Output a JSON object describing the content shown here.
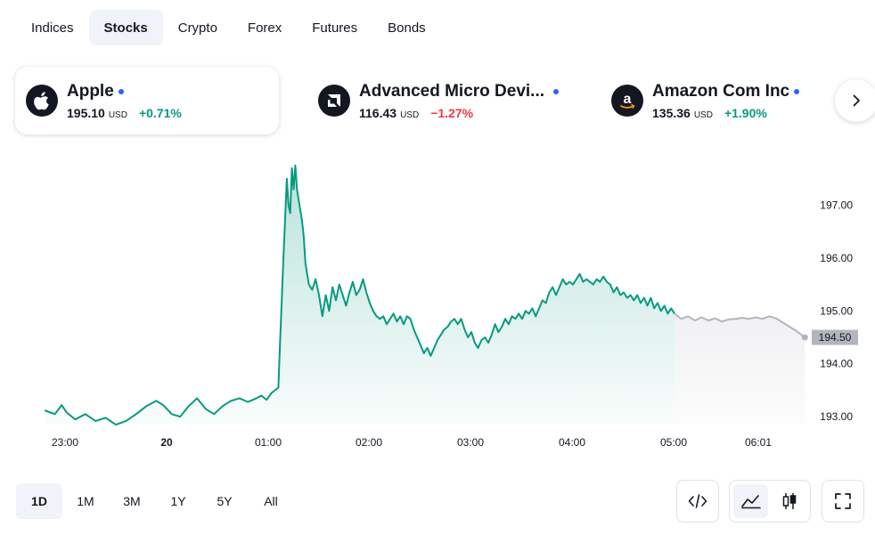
{
  "tabs": [
    {
      "label": "Indices",
      "active": false
    },
    {
      "label": "Stocks",
      "active": true
    },
    {
      "label": "Crypto",
      "active": false
    },
    {
      "label": "Forex",
      "active": false
    },
    {
      "label": "Futures",
      "active": false
    },
    {
      "label": "Bonds",
      "active": false
    }
  ],
  "symbols": [
    {
      "name": "Apple",
      "price": "195.10",
      "currency": "USD",
      "change": "+0.71%",
      "direction": "up",
      "logo_icon": "apple-logo-icon",
      "active": true
    },
    {
      "name": "Advanced Micro Devi...",
      "price": "116.43",
      "currency": "USD",
      "change": "−1.27%",
      "direction": "down",
      "logo_icon": "amd-logo-icon",
      "active": false
    },
    {
      "name": "Amazon Com Inc",
      "price": "135.36",
      "currency": "USD",
      "change": "+1.90%",
      "direction": "up",
      "logo_icon": "amazon-logo-icon",
      "active": false
    }
  ],
  "colors": {
    "up": "#089981",
    "down": "#f23645",
    "line": "#089981",
    "extended_line": "#b2b5be",
    "live_dot": "#2962ff",
    "active_bg": "#f0f3fa"
  },
  "chart_data": {
    "type": "area",
    "x_ticks": [
      "23:00",
      "20",
      "01:00",
      "02:00",
      "03:00",
      "04:00",
      "05:00",
      "06:01"
    ],
    "y_ticks": [
      "197.00",
      "196.00",
      "195.00",
      "194.00",
      "193.00"
    ],
    "ylim": [
      192.75,
      197.85
    ],
    "last_price_label": "194.50",
    "series": [
      {
        "session": "regular",
        "points": [
          [
            "22:48",
            193.12
          ],
          [
            "22:54",
            193.05
          ],
          [
            "22:58",
            193.22
          ],
          [
            "23:01",
            193.08
          ],
          [
            "23:06",
            192.95
          ],
          [
            "23:12",
            193.05
          ],
          [
            "23:18",
            192.92
          ],
          [
            "23:24",
            192.98
          ],
          [
            "23:30",
            192.85
          ],
          [
            "23:36",
            192.92
          ],
          [
            "23:42",
            193.05
          ],
          [
            "23:48",
            193.2
          ],
          [
            "23:54",
            193.3
          ],
          [
            "23:58",
            193.22
          ],
          [
            "00:03",
            193.05
          ],
          [
            "00:08",
            193.0
          ],
          [
            "00:13",
            193.2
          ],
          [
            "00:18",
            193.35
          ],
          [
            "00:23",
            193.15
          ],
          [
            "00:28",
            193.05
          ],
          [
            "00:33",
            193.2
          ],
          [
            "00:38",
            193.3
          ],
          [
            "00:43",
            193.35
          ],
          [
            "00:48",
            193.28
          ],
          [
            "00:53",
            193.35
          ],
          [
            "00:56",
            193.4
          ],
          [
            "00:59",
            193.32
          ],
          [
            "01:02",
            193.45
          ],
          [
            "01:04",
            193.5
          ],
          [
            "01:06",
            193.55
          ],
          [
            "01:07",
            194.4
          ],
          [
            "01:09",
            196.0
          ],
          [
            "01:11",
            197.5
          ],
          [
            "01:12",
            197.0
          ],
          [
            "01:13",
            196.85
          ],
          [
            "01:14",
            197.7
          ],
          [
            "01:15",
            197.3
          ],
          [
            "01:16",
            197.75
          ],
          [
            "01:17",
            197.3
          ],
          [
            "01:18",
            197.1
          ],
          [
            "01:20",
            196.7
          ],
          [
            "01:21",
            196.4
          ],
          [
            "01:22",
            195.9
          ],
          [
            "01:24",
            195.5
          ],
          [
            "01:26",
            195.4
          ],
          [
            "01:28",
            195.6
          ],
          [
            "01:30",
            195.3
          ],
          [
            "01:32",
            194.9
          ],
          [
            "01:34",
            195.3
          ],
          [
            "01:36",
            195.0
          ],
          [
            "01:38",
            195.45
          ],
          [
            "01:40",
            195.2
          ],
          [
            "01:42",
            195.5
          ],
          [
            "01:44",
            195.3
          ],
          [
            "01:46",
            195.1
          ],
          [
            "01:48",
            195.35
          ],
          [
            "01:50",
            195.55
          ],
          [
            "01:52",
            195.3
          ],
          [
            "01:54",
            195.4
          ],
          [
            "01:56",
            195.6
          ],
          [
            "01:58",
            195.35
          ],
          [
            "02:00",
            195.15
          ],
          [
            "02:02",
            195.0
          ],
          [
            "02:04",
            194.9
          ],
          [
            "02:06",
            194.85
          ],
          [
            "02:08",
            194.9
          ],
          [
            "02:10",
            194.75
          ],
          [
            "02:12",
            194.85
          ],
          [
            "02:14",
            194.95
          ],
          [
            "02:16",
            194.8
          ],
          [
            "02:18",
            194.9
          ],
          [
            "02:20",
            194.75
          ],
          [
            "02:22",
            194.9
          ],
          [
            "02:24",
            194.85
          ],
          [
            "02:26",
            194.65
          ],
          [
            "02:28",
            194.5
          ],
          [
            "02:30",
            194.35
          ],
          [
            "02:32",
            194.2
          ],
          [
            "02:34",
            194.3
          ],
          [
            "02:36",
            194.15
          ],
          [
            "02:38",
            194.3
          ],
          [
            "02:40",
            194.45
          ],
          [
            "02:42",
            194.55
          ],
          [
            "02:44",
            194.65
          ],
          [
            "02:46",
            194.7
          ],
          [
            "02:48",
            194.8
          ],
          [
            "02:50",
            194.85
          ],
          [
            "02:52",
            194.75
          ],
          [
            "02:54",
            194.85
          ],
          [
            "02:56",
            194.65
          ],
          [
            "02:58",
            194.5
          ],
          [
            "03:00",
            194.6
          ],
          [
            "03:02",
            194.4
          ],
          [
            "03:04",
            194.3
          ],
          [
            "03:06",
            194.45
          ],
          [
            "03:08",
            194.5
          ],
          [
            "03:10",
            194.4
          ],
          [
            "03:12",
            194.55
          ],
          [
            "03:14",
            194.75
          ],
          [
            "03:16",
            194.6
          ],
          [
            "03:18",
            194.7
          ],
          [
            "03:20",
            194.85
          ],
          [
            "03:22",
            194.75
          ],
          [
            "03:24",
            194.9
          ],
          [
            "03:26",
            194.85
          ],
          [
            "03:28",
            194.95
          ],
          [
            "03:30",
            194.85
          ],
          [
            "03:32",
            195.0
          ],
          [
            "03:34",
            194.95
          ],
          [
            "03:36",
            195.05
          ],
          [
            "03:38",
            194.9
          ],
          [
            "03:40",
            195.05
          ],
          [
            "03:42",
            195.2
          ],
          [
            "03:44",
            195.15
          ],
          [
            "03:46",
            195.35
          ],
          [
            "03:48",
            195.45
          ],
          [
            "03:50",
            195.3
          ],
          [
            "03:52",
            195.45
          ],
          [
            "03:54",
            195.6
          ],
          [
            "03:56",
            195.5
          ],
          [
            "03:58",
            195.55
          ],
          [
            "04:00",
            195.5
          ],
          [
            "04:02",
            195.6
          ],
          [
            "04:04",
            195.7
          ],
          [
            "04:06",
            195.55
          ],
          [
            "04:08",
            195.6
          ],
          [
            "04:10",
            195.55
          ],
          [
            "04:12",
            195.5
          ],
          [
            "04:14",
            195.6
          ],
          [
            "04:16",
            195.55
          ],
          [
            "04:18",
            195.65
          ],
          [
            "04:20",
            195.55
          ],
          [
            "04:22",
            195.5
          ],
          [
            "04:24",
            195.35
          ],
          [
            "04:26",
            195.45
          ],
          [
            "04:28",
            195.3
          ],
          [
            "04:30",
            195.35
          ],
          [
            "04:32",
            195.25
          ],
          [
            "04:34",
            195.3
          ],
          [
            "04:36",
            195.2
          ],
          [
            "04:38",
            195.3
          ],
          [
            "04:40",
            195.15
          ],
          [
            "04:42",
            195.25
          ],
          [
            "04:44",
            195.1
          ],
          [
            "04:46",
            195.25
          ],
          [
            "04:48",
            195.05
          ],
          [
            "04:50",
            195.15
          ],
          [
            "04:52",
            195.0
          ],
          [
            "04:54",
            195.1
          ],
          [
            "04:56",
            194.95
          ],
          [
            "04:58",
            195.05
          ],
          [
            "05:00",
            194.95
          ]
        ]
      },
      {
        "session": "extended",
        "points": [
          [
            "05:00",
            194.95
          ],
          [
            "05:04",
            194.85
          ],
          [
            "05:08",
            194.9
          ],
          [
            "05:12",
            194.82
          ],
          [
            "05:16",
            194.88
          ],
          [
            "05:20",
            194.82
          ],
          [
            "05:24",
            194.86
          ],
          [
            "05:28",
            194.8
          ],
          [
            "05:32",
            194.84
          ],
          [
            "05:36",
            194.85
          ],
          [
            "05:40",
            194.87
          ],
          [
            "05:44",
            194.85
          ],
          [
            "05:48",
            194.88
          ],
          [
            "05:52",
            194.85
          ],
          [
            "05:56",
            194.9
          ],
          [
            "06:00",
            194.86
          ],
          [
            "06:04",
            194.78
          ],
          [
            "06:08",
            194.7
          ],
          [
            "06:12",
            194.62
          ],
          [
            "06:15",
            194.55
          ],
          [
            "06:17",
            194.5
          ]
        ]
      }
    ]
  },
  "ranges": [
    {
      "label": "1D",
      "active": true
    },
    {
      "label": "1M",
      "active": false
    },
    {
      "label": "3M",
      "active": false
    },
    {
      "label": "1Y",
      "active": false
    },
    {
      "label": "5Y",
      "active": false
    },
    {
      "label": "All",
      "active": false
    }
  ],
  "toolbar": {
    "embed_icon": "code-icon",
    "area_icon": "area-chart-icon",
    "candles_icon": "candlestick-icon",
    "fullscreen_icon": "fullscreen-icon"
  }
}
